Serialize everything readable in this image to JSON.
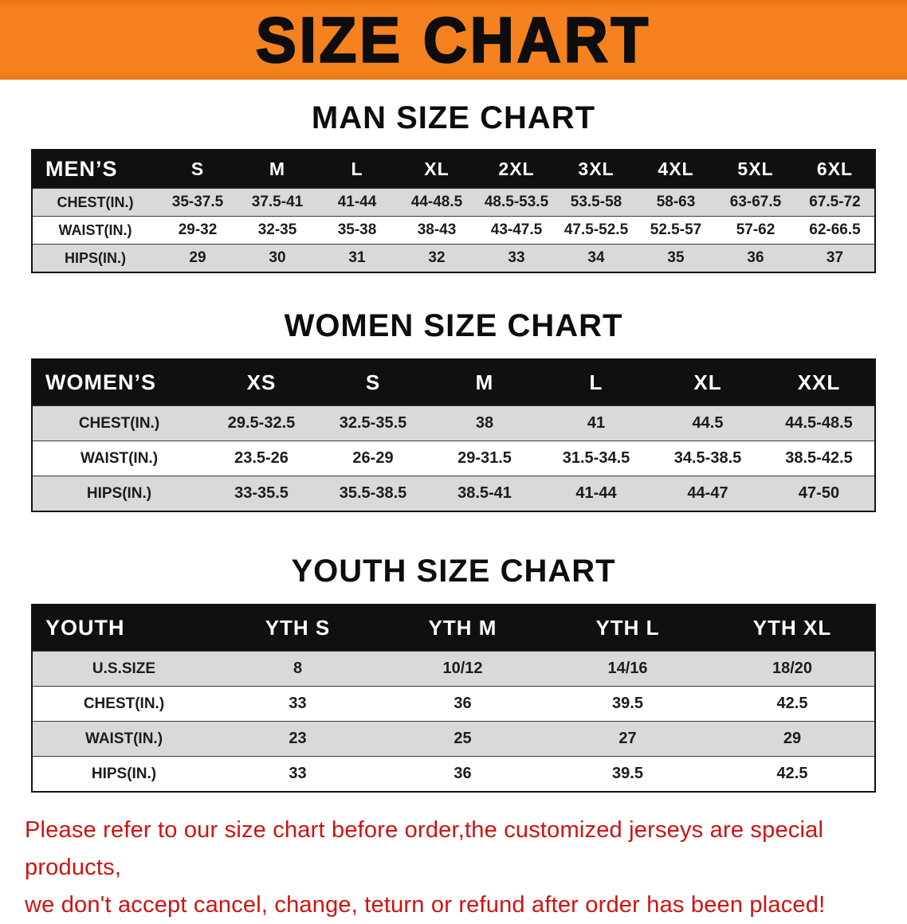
{
  "banner": {
    "title": "SIZE CHART"
  },
  "colors": {
    "banner_bg": "#f5821e",
    "header_bg": "#101010",
    "row_alt_bg": "#d9d9d9",
    "footer_red": "#d01212"
  },
  "sections": [
    {
      "id": "men",
      "heading": "MAN SIZE CHART",
      "table": {
        "header": [
          "MEN’S",
          "S",
          "M",
          "L",
          "XL",
          "2XL",
          "3XL",
          "4XL",
          "5XL",
          "6XL"
        ],
        "rows": [
          [
            "CHEST(IN.)",
            "35-37.5",
            "37.5-41",
            "41-44",
            "44-48.5",
            "48.5-53.5",
            "53.5-58",
            "58-63",
            "63-67.5",
            "67.5-72"
          ],
          [
            "WAIST(IN.)",
            "29-32",
            "32-35",
            "35-38",
            "38-43",
            "43-47.5",
            "47.5-52.5",
            "52.5-57",
            "57-62",
            "62-66.5"
          ],
          [
            "HIPS(IN.)",
            "29",
            "30",
            "31",
            "32",
            "33",
            "34",
            "35",
            "36",
            "37"
          ]
        ]
      }
    },
    {
      "id": "women",
      "heading": "WOMEN SIZE CHART",
      "table": {
        "header": [
          "WOMEN’S",
          "XS",
          "S",
          "M",
          "L",
          "XL",
          "XXL"
        ],
        "rows": [
          [
            "CHEST(IN.)",
            "29.5-32.5",
            "32.5-35.5",
            "38",
            "41",
            "44.5",
            "44.5-48.5"
          ],
          [
            "WAIST(IN.)",
            "23.5-26",
            "26-29",
            "29-31.5",
            "31.5-34.5",
            "34.5-38.5",
            "38.5-42.5"
          ],
          [
            "HIPS(IN.)",
            "33-35.5",
            "35.5-38.5",
            "38.5-41",
            "41-44",
            "44-47",
            "47-50"
          ]
        ]
      }
    },
    {
      "id": "youth",
      "heading": "YOUTH SIZE CHART",
      "table": {
        "header": [
          "YOUTH",
          "YTH S",
          "YTH M",
          "YTH L",
          "YTH XL"
        ],
        "rows": [
          [
            "U.S.SIZE",
            "8",
            "10/12",
            "14/16",
            "18/20"
          ],
          [
            "CHEST(IN.)",
            "33",
            "36",
            "39.5",
            "42.5"
          ],
          [
            "WAIST(IN.)",
            "23",
            "25",
            "27",
            "29"
          ],
          [
            "HIPS(IN.)",
            "33",
            "36",
            "39.5",
            "42.5"
          ]
        ]
      }
    }
  ],
  "footer": {
    "line1": "Please refer to our size chart before order,the customized jerseys are special products,",
    "line2": "we don't accept cancel, change, teturn or refund after order has been placed!"
  }
}
